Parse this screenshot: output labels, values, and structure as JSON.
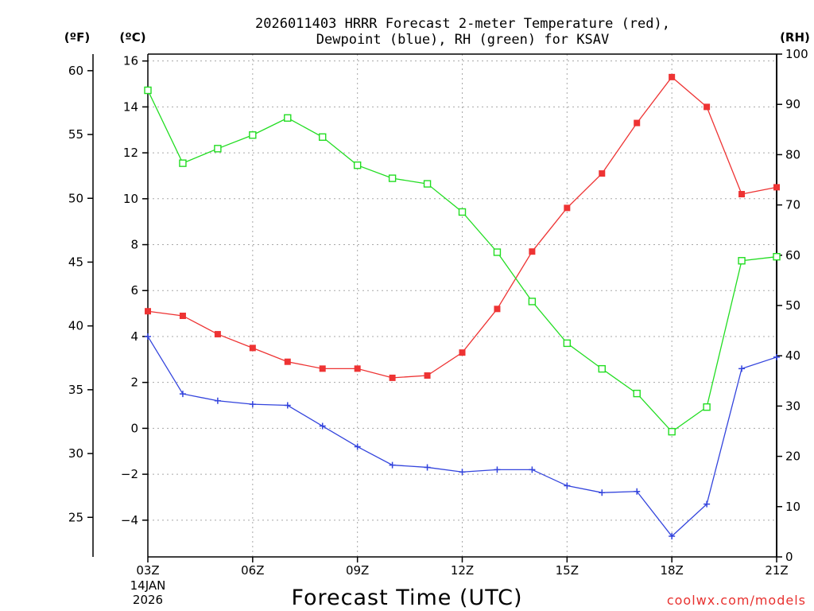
{
  "chart_data": {
    "type": "line",
    "title_line1": "2026011403 HRRR Forecast 2-meter Temperature (red),",
    "title_line2": "Dewpoint (blue), RH (green) for KSAV",
    "xlabel": "Forecast Time (UTC)",
    "date_label_line1": "14JAN",
    "date_label_line2": "2026",
    "credit": "coolwx.com/models",
    "units": {
      "fahrenheit": "(ºF)",
      "celsius": "(ºC)",
      "rh": "(RH)"
    },
    "x": [
      3,
      4,
      5,
      6,
      7,
      8,
      9,
      10,
      11,
      12,
      13,
      14,
      15,
      16,
      17,
      18,
      19,
      20,
      21
    ],
    "x_ticks": [
      {
        "value": 3,
        "label": "03Z"
      },
      {
        "value": 6,
        "label": "06Z"
      },
      {
        "value": 9,
        "label": "09Z"
      },
      {
        "value": 12,
        "label": "12Z"
      },
      {
        "value": 15,
        "label": "15Z"
      },
      {
        "value": 18,
        "label": "18Z"
      },
      {
        "value": 21,
        "label": "21Z"
      }
    ],
    "xlim": [
      3,
      21
    ],
    "celsius_axis": {
      "range": [
        -5.6,
        16.3
      ],
      "ticks": [
        "-4",
        "-2",
        "0",
        "2",
        "4",
        "6",
        "8",
        "10",
        "12",
        "14",
        "16"
      ]
    },
    "fahrenheit_axis": {
      "range": [
        21.9,
        61.3
      ],
      "ticks": [
        "25",
        "30",
        "35",
        "40",
        "45",
        "50",
        "55",
        "60"
      ]
    },
    "rh_axis": {
      "range": [
        0,
        100
      ],
      "ticks": [
        "0",
        "10",
        "20",
        "30",
        "40",
        "50",
        "60",
        "70",
        "80",
        "90",
        "100"
      ]
    },
    "grid": true,
    "series": [
      {
        "key": "temperature",
        "axis": "celsius",
        "color": "#ee3333",
        "marker": "filled-square",
        "values": [
          5.1,
          4.9,
          4.1,
          3.5,
          2.9,
          2.6,
          2.6,
          2.2,
          2.3,
          3.3,
          5.2,
          7.7,
          9.6,
          11.1,
          13.3,
          15.3,
          14.0,
          10.2,
          10.5
        ]
      },
      {
        "key": "dewpoint",
        "axis": "celsius",
        "color": "#3344dd",
        "marker": "plus",
        "values": [
          4.0,
          1.5,
          1.2,
          1.05,
          1.0,
          0.1,
          -0.8,
          -1.6,
          -1.7,
          -1.9,
          -1.8,
          -1.8,
          -2.5,
          -2.8,
          -2.75,
          -4.7,
          -3.3,
          2.6,
          3.1
        ]
      },
      {
        "key": "rh",
        "axis": "rh",
        "color": "#22dd22",
        "marker": "open-square",
        "values": [
          92.8,
          78.3,
          81.2,
          83.9,
          87.3,
          83.5,
          77.9,
          75.3,
          74.2,
          68.6,
          60.6,
          50.8,
          42.5,
          37.4,
          32.5,
          24.9,
          29.8,
          58.9,
          59.7
        ]
      }
    ]
  }
}
